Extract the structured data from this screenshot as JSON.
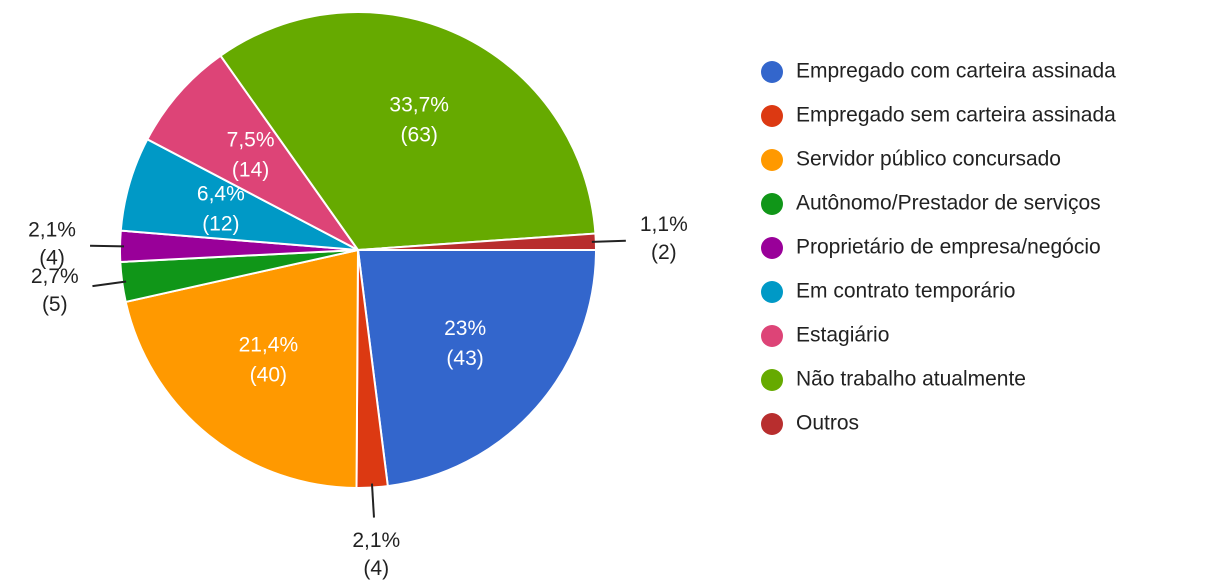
{
  "chart_data": {
    "type": "pie",
    "categories": [
      "Empregado com carteira assinada",
      "Empregado sem carteira assinada",
      "Servidor público concursado",
      "Autônomo/Prestador de serviços",
      "Proprietário de empresa/negócio",
      "Em contrato temporário",
      "Estagiário",
      "Não trabalho atualmente",
      "Outros"
    ],
    "values": [
      23,
      2.1,
      21.4,
      2.7,
      2.1,
      6.4,
      7.5,
      33.7,
      1.1
    ],
    "value_labels": [
      "23%",
      "2,1%",
      "21,4%",
      "2,7%",
      "2,1%",
      "6,4%",
      "7,5%",
      "33,7%",
      "1,1%"
    ],
    "counts": [
      43,
      4,
      40,
      5,
      4,
      12,
      14,
      63,
      2
    ],
    "count_labels": [
      "(43)",
      "(4)",
      "(40)",
      "(5)",
      "(4)",
      "(12)",
      "(14)",
      "(63)",
      "(2)"
    ],
    "colors": [
      "#3366cc",
      "#dc3912",
      "#ff9900",
      "#109618",
      "#990099",
      "#0099c6",
      "#dd4477",
      "#66aa00",
      "#b82e2e"
    ],
    "legend": "right"
  }
}
